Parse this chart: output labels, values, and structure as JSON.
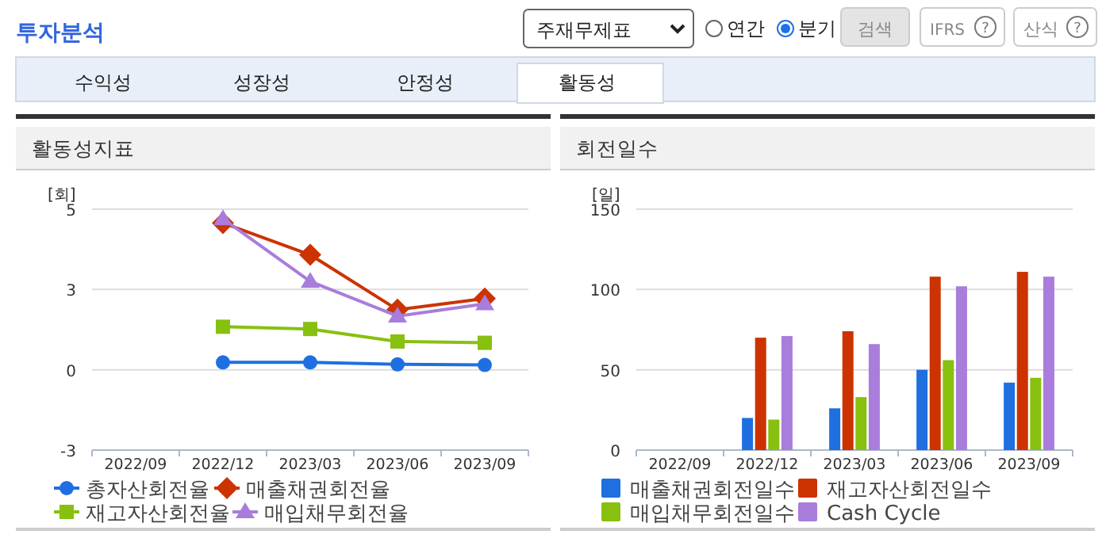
{
  "chart_data": [
    {
      "type": "other",
      "annotations": [
        "투자분석",
        "주재무제표",
        "연간",
        "분기",
        "검색",
        "IFRS",
        "산식",
        "수익성",
        "성장성",
        "안정성",
        "활동성",
        "?",
        "?"
      ]
    },
    {
      "type": "line",
      "title": "활동성지표",
      "ylabel": "[회]",
      "categories": [
        "2022/09",
        "2022/12",
        "2023/03",
        "2023/06",
        "2023/09"
      ],
      "ylim": [
        -2.5,
        5
      ],
      "yticks": [
        {
          "value": -2.5,
          "label": "-3"
        },
        0,
        {
          "value": 2.5,
          "label": "3"
        },
        5
      ],
      "grid": "y",
      "legend": "bottom",
      "line_style": "solid",
      "series": [
        {
          "name": "총자산회전율",
          "color": "#1f6fe0",
          "marker": "circle",
          "values": [
            null,
            0.23,
            0.23,
            0.17,
            0.15
          ]
        },
        {
          "name": "매출채권회전율",
          "color": "#cc3300",
          "marker": "diamond",
          "values": [
            null,
            4.57,
            3.58,
            1.87,
            2.22
          ]
        },
        {
          "name": "재고자산회전율",
          "color": "#88c010",
          "marker": "square",
          "values": [
            null,
            1.34,
            1.27,
            0.88,
            0.84
          ]
        },
        {
          "name": "매입채무회전율",
          "color": "#a97ddb",
          "marker": "triangle",
          "values": [
            null,
            4.7,
            2.75,
            1.67,
            2.05
          ]
        }
      ]
    },
    {
      "type": "bar",
      "title": "회전일수",
      "ylabel": "[일]",
      "categories": [
        "2022/09",
        "2022/12",
        "2023/03",
        "2023/06",
        "2023/09"
      ],
      "ylim": [
        0,
        150
      ],
      "yticks": [
        0,
        50,
        100,
        150
      ],
      "grid": "y",
      "legend": "bottom",
      "series": [
        {
          "name": "매출채권회전일수",
          "color": "#1f6fe0",
          "values": [
            null,
            20,
            26,
            50,
            42
          ]
        },
        {
          "name": "재고자산회전일수",
          "color": "#cc3300",
          "values": [
            null,
            70,
            74,
            108,
            111
          ]
        },
        {
          "name": "매입채무회전일수",
          "color": "#88c010",
          "values": [
            null,
            19,
            33,
            56,
            45
          ]
        },
        {
          "name": "Cash Cycle",
          "color": "#a97ddb",
          "values": [
            null,
            71,
            66,
            102,
            108
          ]
        }
      ]
    }
  ]
}
